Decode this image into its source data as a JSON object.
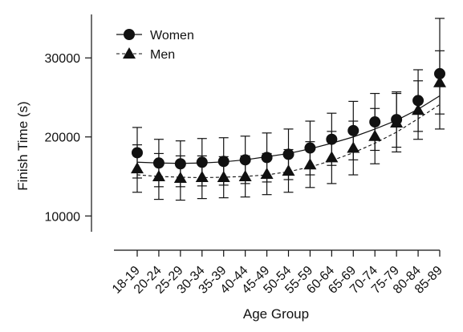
{
  "chart_data": {
    "type": "line",
    "xlabel": "Age Group",
    "ylabel": "Finish Time (s)",
    "ylim": [
      8000,
      35500
    ],
    "yticks": [
      10000,
      20000,
      30000
    ],
    "categories": [
      "18-19",
      "20-24",
      "25-29",
      "30-34",
      "35-39",
      "40-44",
      "45-49",
      "50-54",
      "55-59",
      "60-64",
      "65-69",
      "70-74",
      "75-79",
      "80-84",
      "85-89"
    ],
    "series": [
      {
        "name": "Women",
        "marker": "circle",
        "line_style": "solid",
        "values": [
          18000,
          16700,
          16600,
          16800,
          16900,
          17100,
          17400,
          17800,
          18600,
          19700,
          20800,
          21900,
          22200,
          24600,
          28000
        ],
        "error": [
          3200,
          3000,
          2900,
          3000,
          3000,
          3000,
          3100,
          3200,
          3400,
          3300,
          3700,
          3600,
          3500,
          3900,
          7000
        ],
        "fit": [
          16800,
          16700,
          16650,
          16700,
          16850,
          17100,
          17500,
          17900,
          18500,
          19200,
          20000,
          21000,
          22100,
          23500,
          25200
        ]
      },
      {
        "name": "Men",
        "marker": "triangle",
        "line_style": "dashed",
        "values": [
          16000,
          15000,
          14800,
          14900,
          14900,
          15000,
          15300,
          15700,
          16500,
          17400,
          18600,
          20100,
          21800,
          23400,
          26900
        ],
        "error": [
          3000,
          2900,
          2800,
          2700,
          2600,
          2600,
          2600,
          2700,
          2900,
          3300,
          3400,
          3500,
          3700,
          3700,
          4000
        ],
        "fit": [
          15200,
          15000,
          14900,
          14850,
          14900,
          15000,
          15200,
          15600,
          16200,
          17000,
          18000,
          19200,
          20600,
          22300,
          24100
        ]
      }
    ],
    "legend_position": "top-left",
    "grid": false,
    "colors": {
      "ink": "#111111",
      "background": "#ffffff"
    }
  }
}
